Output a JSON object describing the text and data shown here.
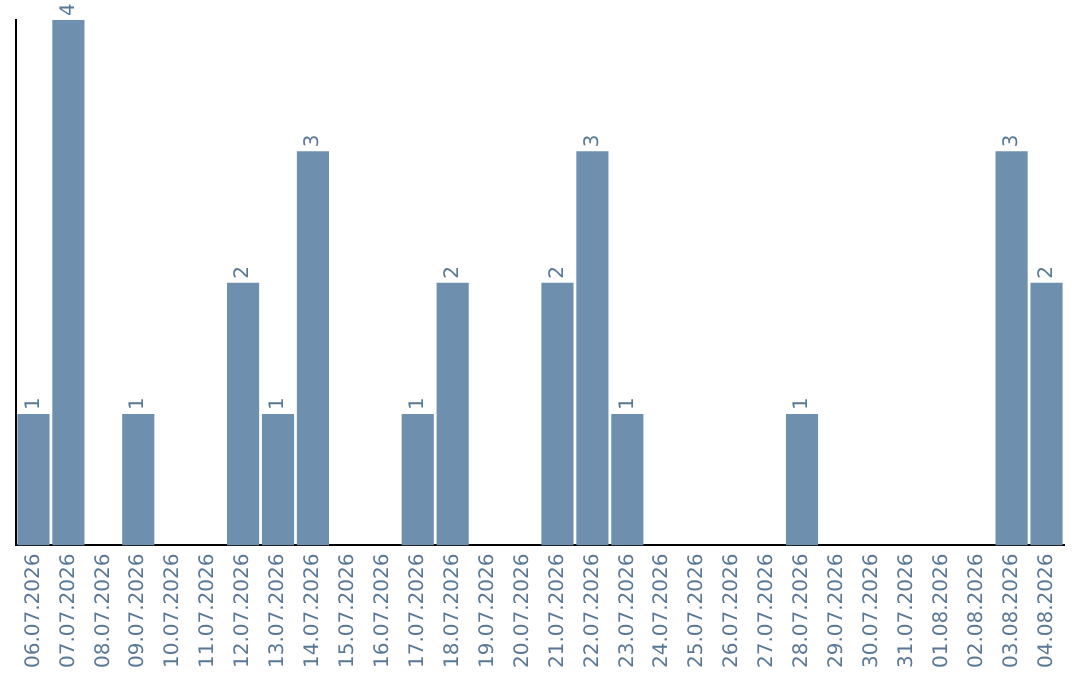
{
  "chart_data": {
    "type": "bar",
    "categories": [
      "06.07.2026",
      "07.07.2026",
      "08.07.2026",
      "09.07.2026",
      "10.07.2026",
      "11.07.2026",
      "12.07.2026",
      "13.07.2026",
      "14.07.2026",
      "15.07.2026",
      "16.07.2026",
      "17.07.2026",
      "18.07.2026",
      "19.07.2026",
      "20.07.2026",
      "21.07.2026",
      "22.07.2026",
      "23.07.2026",
      "24.07.2026",
      "25.07.2026",
      "26.07.2026",
      "27.07.2026",
      "28.07.2026",
      "29.07.2026",
      "30.07.2026",
      "31.07.2026",
      "01.08.2026",
      "02.08.2026",
      "03.08.2026",
      "04.08.2026"
    ],
    "values": [
      1,
      4,
      0,
      1,
      0,
      0,
      2,
      1,
      3,
      0,
      0,
      1,
      2,
      0,
      0,
      2,
      3,
      1,
      0,
      0,
      0,
      0,
      1,
      0,
      0,
      0,
      0,
      0,
      3,
      2
    ],
    "value_labels": [
      "1",
      "4",
      null,
      "1",
      null,
      null,
      "2",
      "1",
      "3",
      null,
      null,
      "1",
      "2",
      null,
      null,
      "2",
      "3",
      "1",
      null,
      null,
      null,
      null,
      "1",
      null,
      null,
      null,
      null,
      null,
      "3",
      "2"
    ],
    "color": "#6e8fae",
    "grid": false,
    "legend": false,
    "tick_labels": "x"
  }
}
